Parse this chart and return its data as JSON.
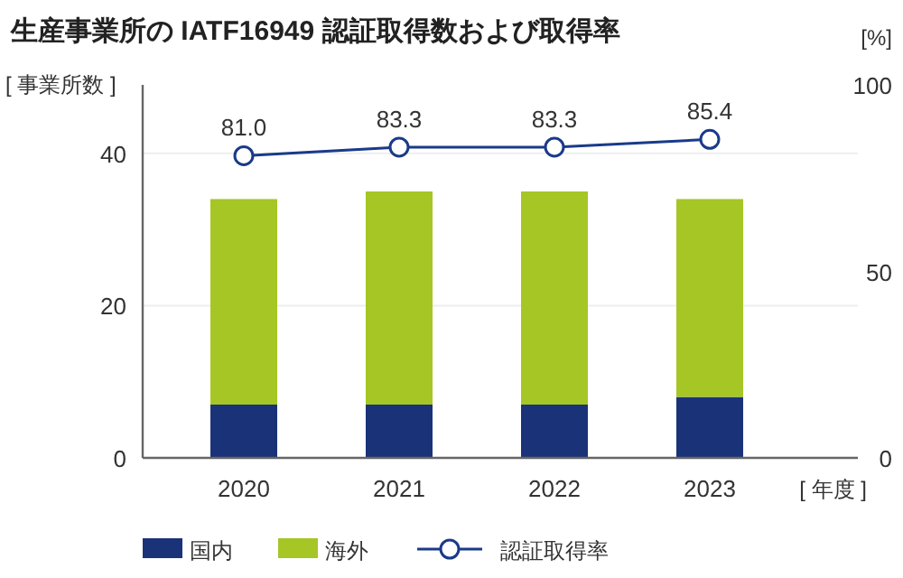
{
  "chart_data": {
    "type": "bar",
    "title": "生産事業所の IATF16949 認証取得数および取得率",
    "categories": [
      "2020",
      "2021",
      "2022",
      "2023"
    ],
    "stacked": true,
    "series": [
      {
        "name": "国内",
        "color": "#1a3278",
        "values": [
          7,
          7,
          7,
          8
        ]
      },
      {
        "name": "海外",
        "color": "#a5c625",
        "values": [
          27,
          28,
          28,
          26
        ]
      },
      {
        "name": "認証取得率",
        "type": "line",
        "axis": "y2",
        "color": "#1a3a8a",
        "marker": "circle",
        "values": [
          81.0,
          83.3,
          83.3,
          85.4
        ],
        "value_labels": [
          "81.0",
          "83.3",
          "83.3",
          "85.4"
        ]
      }
    ],
    "ylabel": "[ 事業所数 ]",
    "y2label": "[%]",
    "xlabel": "[ 年度 ]",
    "ylim": [
      0,
      49
    ],
    "yticks": [
      0,
      20,
      40
    ],
    "y2lim": [
      0,
      100
    ],
    "y2ticks": [
      0,
      50,
      100
    ],
    "grid": "y",
    "legend": "bottom"
  }
}
